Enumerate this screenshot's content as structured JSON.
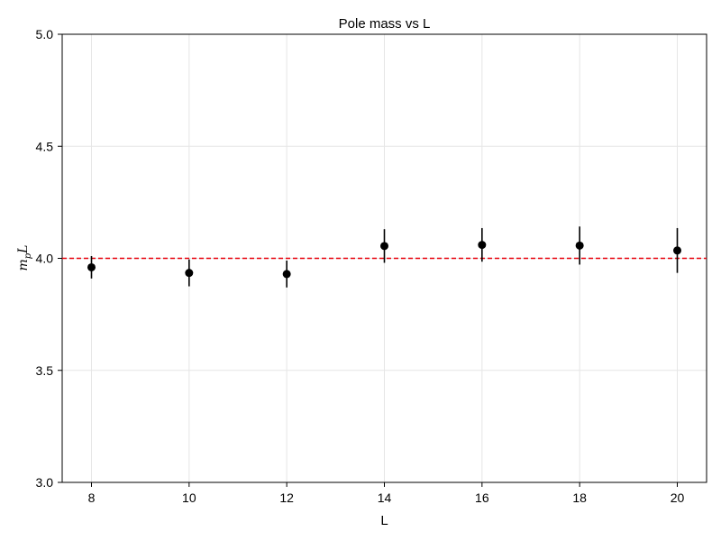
{
  "chart_data": {
    "type": "scatter",
    "title": "Pole mass vs L",
    "xlabel": "L",
    "ylabel_main": "m",
    "ylabel_sub": "p",
    "ylabel_tail": "L",
    "xlim": [
      7.4,
      20.6
    ],
    "ylim": [
      3.0,
      5.0
    ],
    "xticks": [
      8,
      10,
      12,
      14,
      16,
      18,
      20
    ],
    "yticks": [
      3.0,
      3.5,
      4.0,
      4.5,
      5.0
    ],
    "ytick_labels": [
      "3.0",
      "3.5",
      "4.0",
      "4.5",
      "5.0"
    ],
    "grid": true,
    "reference_line": {
      "y": 4.0,
      "style": "dashed",
      "color": "#e8000b"
    },
    "series": [
      {
        "marker_color": "#000000",
        "points": [
          {
            "x": 8,
            "y": 3.96,
            "err": 0.05
          },
          {
            "x": 10,
            "y": 3.935,
            "err": 0.06
          },
          {
            "x": 12,
            "y": 3.93,
            "err": 0.06
          },
          {
            "x": 14,
            "y": 4.055,
            "err": 0.075
          },
          {
            "x": 16,
            "y": 4.06,
            "err": 0.075
          },
          {
            "x": 18,
            "y": 4.057,
            "err": 0.085
          },
          {
            "x": 20,
            "y": 4.035,
            "err": 0.1
          }
        ]
      }
    ]
  }
}
